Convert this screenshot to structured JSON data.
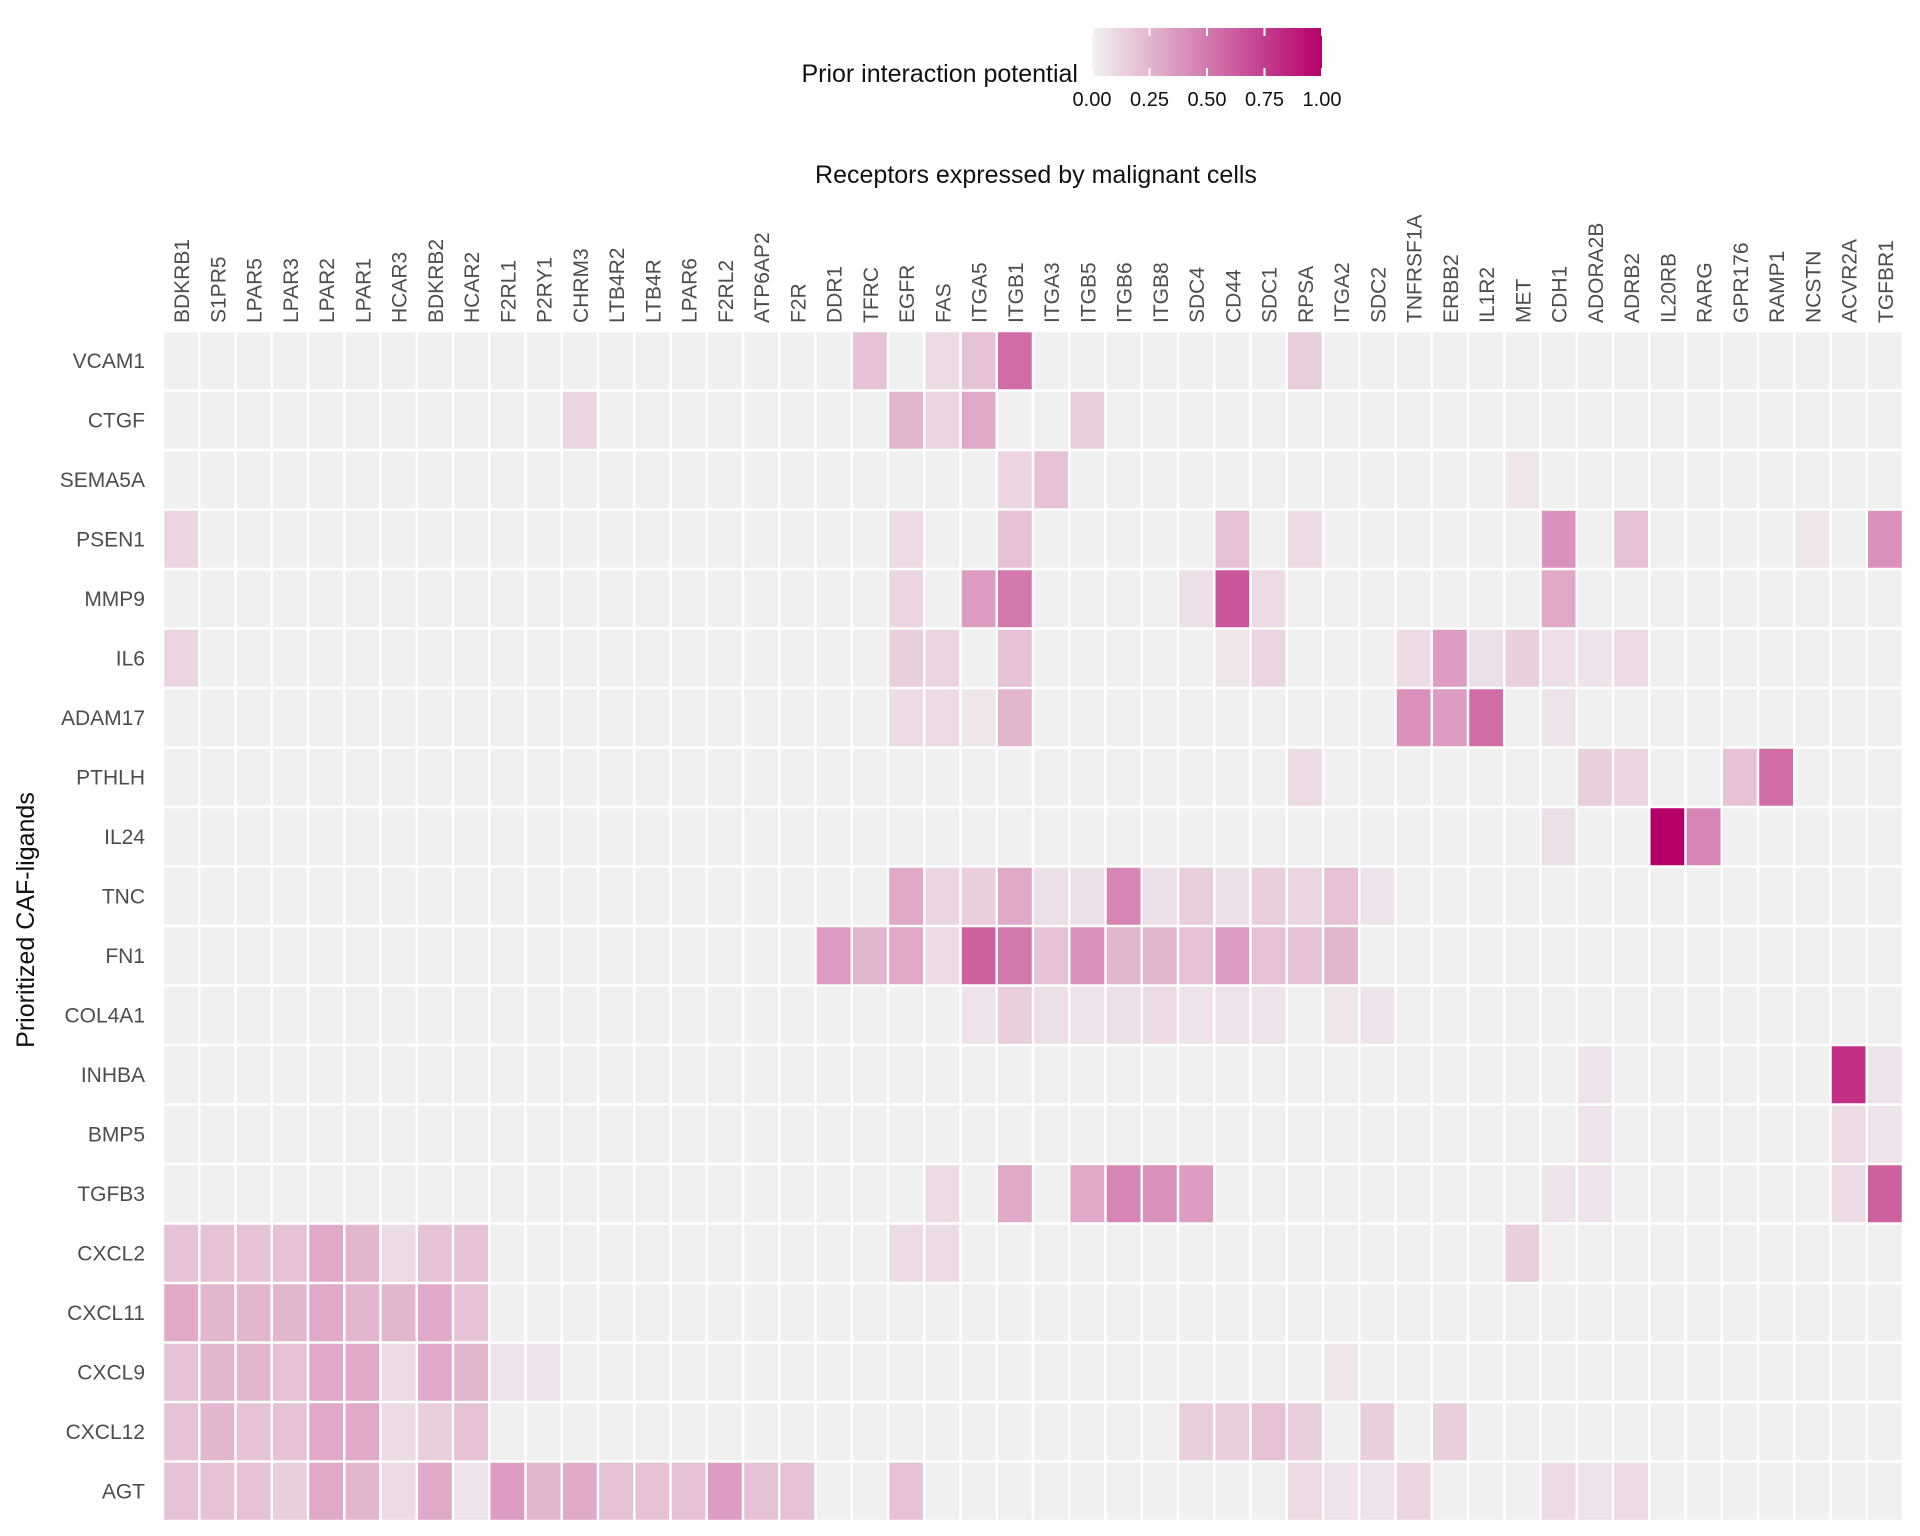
{
  "chart_data": {
    "type": "heatmap",
    "title": "",
    "xlabel": "Receptors expressed by malignant cells",
    "ylabel": "Prioritized CAF-ligands",
    "legend": {
      "title": "Prior interaction potential",
      "ticks": [
        "0.00",
        "0.25",
        "0.50",
        "0.75",
        "1.00"
      ],
      "range": [
        0,
        1
      ],
      "position": "top",
      "colors": {
        "low": "#f2f2f2",
        "high": "#b5006a"
      }
    },
    "background_color": "#f0f0f0",
    "x": [
      "BDKRB1",
      "S1PR5",
      "LPAR5",
      "LPAR3",
      "LPAR2",
      "LPAR1",
      "HCAR3",
      "BDKRB2",
      "HCAR2",
      "F2RL1",
      "P2RY1",
      "CHRM3",
      "LTB4R2",
      "LTB4R",
      "LPAR6",
      "F2RL2",
      "ATP6AP2",
      "F2R",
      "DDR1",
      "TFRC",
      "EGFR",
      "FAS",
      "ITGA5",
      "ITGB1",
      "ITGA3",
      "ITGB5",
      "ITGB6",
      "ITGB8",
      "SDC4",
      "CD44",
      "SDC1",
      "RPSA",
      "ITGA2",
      "SDC2",
      "TNFRSF1A",
      "ERBB2",
      "IL1R2",
      "MET",
      "CDH1",
      "ADORA2B",
      "ADRB2",
      "IL20RB",
      "RARG",
      "GPR176",
      "RAMP1",
      "NCSTN",
      "ACVR2A",
      "TGFBR1"
    ],
    "y": [
      "VCAM1",
      "CTGF",
      "SEMA5A",
      "PSEN1",
      "MMP9",
      "IL6",
      "ADAM17",
      "PTHLH",
      "IL24",
      "TNC",
      "FN1",
      "COL4A1",
      "INHBA",
      "BMP5",
      "TGFB3",
      "CXCL2",
      "CXCL11",
      "CXCL9",
      "CXCL12",
      "AGT"
    ],
    "values": [
      [
        0,
        0,
        0,
        0,
        0,
        0,
        0,
        0,
        0,
        0,
        0,
        0,
        0,
        0,
        0,
        0,
        0,
        0,
        0,
        0.2,
        0,
        0.1,
        0.2,
        0.55,
        0,
        0,
        0,
        0,
        0,
        0,
        0,
        0.15,
        0,
        0,
        0,
        0,
        0,
        0,
        0,
        0,
        0,
        0,
        0,
        0,
        0,
        0,
        0,
        0
      ],
      [
        0,
        0,
        0,
        0,
        0,
        0,
        0,
        0,
        0,
        0,
        0,
        0.12,
        0,
        0,
        0,
        0,
        0,
        0,
        0,
        0,
        0.25,
        0.12,
        0.3,
        0,
        0,
        0.15,
        0,
        0,
        0,
        0,
        0,
        0,
        0,
        0,
        0,
        0,
        0,
        0,
        0,
        0,
        0,
        0,
        0,
        0,
        0,
        0,
        0,
        0
      ],
      [
        0,
        0,
        0,
        0,
        0,
        0,
        0,
        0,
        0,
        0,
        0,
        0,
        0,
        0,
        0,
        0,
        0,
        0,
        0,
        0,
        0,
        0,
        0,
        0.12,
        0.2,
        0,
        0,
        0,
        0,
        0,
        0,
        0,
        0,
        0,
        0,
        0,
        0,
        0.05,
        0,
        0,
        0,
        0,
        0,
        0,
        0,
        0,
        0,
        0
      ],
      [
        0.12,
        0,
        0,
        0,
        0,
        0,
        0,
        0,
        0,
        0,
        0,
        0,
        0,
        0,
        0,
        0,
        0,
        0,
        0,
        0,
        0.1,
        0,
        0,
        0.2,
        0,
        0,
        0,
        0,
        0,
        0.2,
        0,
        0.1,
        0,
        0,
        0,
        0,
        0,
        0,
        0.4,
        0,
        0.2,
        0,
        0,
        0,
        0,
        0.05,
        0,
        0.4
      ],
      [
        0,
        0,
        0,
        0,
        0,
        0,
        0,
        0,
        0,
        0,
        0,
        0,
        0,
        0,
        0,
        0,
        0,
        0,
        0,
        0,
        0.12,
        0,
        0.35,
        0.5,
        0,
        0,
        0,
        0,
        0.08,
        0.65,
        0.1,
        0,
        0,
        0,
        0,
        0,
        0,
        0,
        0.3,
        0,
        0,
        0,
        0,
        0,
        0,
        0,
        0,
        0
      ],
      [
        0.12,
        0,
        0,
        0,
        0,
        0,
        0,
        0,
        0,
        0,
        0,
        0,
        0,
        0,
        0,
        0,
        0,
        0,
        0,
        0,
        0.15,
        0.12,
        0,
        0.2,
        0,
        0,
        0,
        0,
        0,
        0.05,
        0.12,
        0,
        0,
        0,
        0.1,
        0.35,
        0.08,
        0.15,
        0.08,
        0.06,
        0.1,
        0,
        0,
        0,
        0,
        0,
        0,
        0
      ],
      [
        0,
        0,
        0,
        0,
        0,
        0,
        0,
        0,
        0,
        0,
        0,
        0,
        0,
        0,
        0,
        0,
        0,
        0,
        0,
        0,
        0.1,
        0.1,
        0.05,
        0.25,
        0,
        0,
        0,
        0,
        0,
        0,
        0,
        0,
        0,
        0,
        0.4,
        0.35,
        0.55,
        0,
        0.06,
        0,
        0,
        0,
        0,
        0,
        0,
        0,
        0,
        0
      ],
      [
        0,
        0,
        0,
        0,
        0,
        0,
        0,
        0,
        0,
        0,
        0,
        0,
        0,
        0,
        0,
        0,
        0,
        0,
        0,
        0,
        0,
        0,
        0,
        0,
        0,
        0,
        0,
        0,
        0,
        0,
        0,
        0.1,
        0,
        0,
        0,
        0,
        0,
        0,
        0,
        0.15,
        0.12,
        0,
        0,
        0.2,
        0.55,
        0,
        0,
        0
      ],
      [
        0,
        0,
        0,
        0,
        0,
        0,
        0,
        0,
        0,
        0,
        0,
        0,
        0,
        0,
        0,
        0,
        0,
        0,
        0,
        0,
        0,
        0,
        0,
        0,
        0,
        0,
        0,
        0,
        0,
        0,
        0,
        0,
        0,
        0,
        0,
        0,
        0,
        0,
        0.08,
        0,
        0,
        1.0,
        0.45,
        0,
        0,
        0,
        0,
        0
      ],
      [
        0,
        0,
        0,
        0,
        0,
        0,
        0,
        0,
        0,
        0,
        0,
        0,
        0,
        0,
        0,
        0,
        0,
        0,
        0,
        0,
        0.3,
        0.12,
        0.15,
        0.3,
        0.08,
        0.08,
        0.45,
        0.08,
        0.15,
        0.08,
        0.15,
        0.12,
        0.2,
        0.06,
        0,
        0,
        0,
        0,
        0,
        0,
        0,
        0,
        0,
        0,
        0,
        0,
        0,
        0
      ],
      [
        0,
        0,
        0,
        0,
        0,
        0,
        0,
        0,
        0,
        0,
        0,
        0,
        0,
        0,
        0,
        0,
        0,
        0,
        0.35,
        0.25,
        0.3,
        0.1,
        0.6,
        0.5,
        0.2,
        0.4,
        0.25,
        0.25,
        0.2,
        0.35,
        0.2,
        0.2,
        0.25,
        0,
        0,
        0,
        0,
        0,
        0,
        0,
        0,
        0,
        0,
        0,
        0,
        0,
        0,
        0
      ],
      [
        0,
        0,
        0,
        0,
        0,
        0,
        0,
        0,
        0,
        0,
        0,
        0,
        0,
        0,
        0,
        0,
        0,
        0,
        0,
        0,
        0,
        0,
        0.06,
        0.15,
        0.08,
        0.06,
        0.08,
        0.1,
        0.06,
        0.06,
        0.06,
        0,
        0.05,
        0.06,
        0,
        0,
        0,
        0,
        0,
        0,
        0,
        0,
        0,
        0,
        0,
        0,
        0,
        0
      ],
      [
        0,
        0,
        0,
        0,
        0,
        0,
        0,
        0,
        0,
        0,
        0,
        0,
        0,
        0,
        0,
        0,
        0,
        0,
        0,
        0,
        0,
        0,
        0,
        0,
        0,
        0,
        0,
        0,
        0,
        0,
        0,
        0,
        0,
        0,
        0,
        0,
        0,
        0,
        0,
        0.06,
        0,
        0,
        0,
        0,
        0,
        0,
        0.8,
        0.06
      ],
      [
        0,
        0,
        0,
        0,
        0,
        0,
        0,
        0,
        0,
        0,
        0,
        0,
        0,
        0,
        0,
        0,
        0,
        0,
        0,
        0,
        0,
        0,
        0,
        0,
        0,
        0,
        0,
        0,
        0,
        0,
        0,
        0,
        0,
        0,
        0,
        0,
        0,
        0,
        0,
        0.06,
        0,
        0,
        0,
        0,
        0,
        0,
        0.1,
        0.06
      ],
      [
        0,
        0,
        0,
        0,
        0,
        0,
        0,
        0,
        0,
        0,
        0,
        0,
        0,
        0,
        0,
        0,
        0,
        0,
        0,
        0,
        0,
        0.1,
        0,
        0.3,
        0,
        0.3,
        0.45,
        0.4,
        0.35,
        0,
        0,
        0,
        0,
        0,
        0,
        0,
        0,
        0,
        0.06,
        0.06,
        0,
        0,
        0,
        0,
        0,
        0,
        0.1,
        0.6
      ],
      [
        0.2,
        0.2,
        0.2,
        0.2,
        0.3,
        0.25,
        0.1,
        0.2,
        0.2,
        0,
        0,
        0,
        0,
        0,
        0,
        0,
        0,
        0,
        0,
        0,
        0.1,
        0.1,
        0,
        0,
        0,
        0,
        0,
        0,
        0,
        0,
        0,
        0,
        0,
        0,
        0,
        0,
        0,
        0.15,
        0,
        0,
        0,
        0,
        0,
        0,
        0,
        0,
        0,
        0
      ],
      [
        0.3,
        0.25,
        0.25,
        0.25,
        0.3,
        0.25,
        0.25,
        0.3,
        0.2,
        0,
        0,
        0,
        0,
        0,
        0,
        0,
        0,
        0,
        0,
        0,
        0,
        0,
        0,
        0,
        0,
        0,
        0,
        0,
        0,
        0,
        0,
        0,
        0,
        0,
        0,
        0,
        0,
        0,
        0,
        0,
        0,
        0,
        0,
        0,
        0,
        0,
        0,
        0
      ],
      [
        0.2,
        0.25,
        0.25,
        0.2,
        0.3,
        0.3,
        0.1,
        0.3,
        0.25,
        0.06,
        0.06,
        0,
        0,
        0,
        0,
        0,
        0,
        0,
        0,
        0,
        0,
        0,
        0,
        0,
        0,
        0,
        0,
        0,
        0,
        0,
        0,
        0,
        0.05,
        0,
        0,
        0,
        0,
        0,
        0,
        0,
        0,
        0,
        0,
        0,
        0,
        0,
        0,
        0
      ],
      [
        0.2,
        0.25,
        0.2,
        0.2,
        0.3,
        0.3,
        0.1,
        0.15,
        0.2,
        0,
        0,
        0,
        0,
        0,
        0,
        0,
        0,
        0,
        0,
        0,
        0,
        0,
        0,
        0,
        0,
        0,
        0,
        0,
        0.15,
        0.15,
        0.2,
        0.15,
        0,
        0.15,
        0,
        0.15,
        0,
        0,
        0,
        0,
        0,
        0,
        0,
        0,
        0,
        0,
        0,
        0
      ],
      [
        0.2,
        0.2,
        0.2,
        0.15,
        0.3,
        0.25,
        0.1,
        0.3,
        0.06,
        0.35,
        0.25,
        0.3,
        0.2,
        0.2,
        0.2,
        0.35,
        0.2,
        0.2,
        0,
        0,
        0.2,
        0,
        0,
        0,
        0,
        0,
        0,
        0,
        0,
        0,
        0,
        0.1,
        0.06,
        0.06,
        0.12,
        0,
        0,
        0,
        0.1,
        0.06,
        0.1,
        0,
        0,
        0,
        0,
        0,
        0,
        0
      ]
    ]
  }
}
